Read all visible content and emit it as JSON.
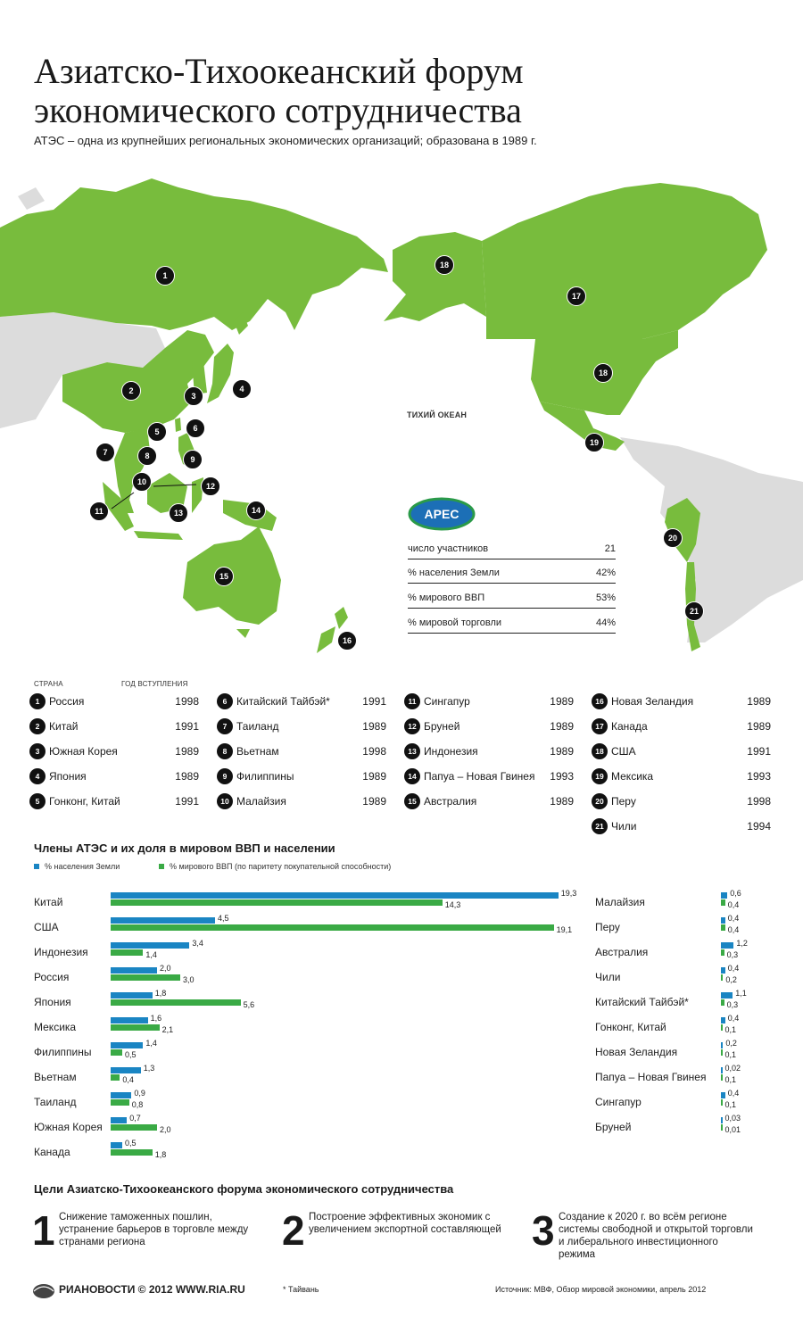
{
  "header": {
    "title": "Азиатско-Тихоокеанский форум экономического сотрудничества",
    "subtitle": "АТЭС – одна из крупнейших региональных экономических организаций; образована в 1989 г."
  },
  "map": {
    "ocean_label": "ТИХИЙ ОКЕАН",
    "member_color": "#78bc3d",
    "other_color": "#dcdcdc"
  },
  "stats": {
    "logo_text": "APEC",
    "rows": [
      {
        "label": "число участников",
        "value": "21"
      },
      {
        "label": "% населения Земли",
        "value": "42%"
      },
      {
        "label": "% мирового ВВП",
        "value": "53%"
      },
      {
        "label": "% мировой торговли",
        "value": "44%"
      }
    ]
  },
  "members_table": {
    "col_country": "СТРАНА",
    "col_year": "ГОД ВСТУПЛЕНИЯ",
    "rows": [
      {
        "num": "1",
        "name": "Россия",
        "year": "1998"
      },
      {
        "num": "2",
        "name": "Китай",
        "year": "1991"
      },
      {
        "num": "3",
        "name": "Южная Корея",
        "year": "1989"
      },
      {
        "num": "4",
        "name": "Япония",
        "year": "1989"
      },
      {
        "num": "5",
        "name": "Гонконг, Китай",
        "year": "1991"
      },
      {
        "num": "6",
        "name": "Китайский Тайбэй*",
        "year": "1991"
      },
      {
        "num": "7",
        "name": "Таиланд",
        "year": "1989"
      },
      {
        "num": "8",
        "name": "Вьетнам",
        "year": "1998"
      },
      {
        "num": "9",
        "name": "Филиппины",
        "year": "1989"
      },
      {
        "num": "10",
        "name": "Малайзия",
        "year": "1989"
      },
      {
        "num": "11",
        "name": "Сингапур",
        "year": "1989"
      },
      {
        "num": "12",
        "name": "Бруней",
        "year": "1989"
      },
      {
        "num": "13",
        "name": "Индонезия",
        "year": "1989"
      },
      {
        "num": "14",
        "name": "Папуа – Новая Гвинея",
        "year": "1993"
      },
      {
        "num": "15",
        "name": "Австралия",
        "year": "1989"
      },
      {
        "num": "16",
        "name": "Новая Зеландия",
        "year": "1989"
      },
      {
        "num": "17",
        "name": "Канада",
        "year": "1989"
      },
      {
        "num": "18",
        "name": "США",
        "year": "1991"
      },
      {
        "num": "19",
        "name": "Мексика",
        "year": "1993"
      },
      {
        "num": "20",
        "name": "Перу",
        "year": "1998"
      },
      {
        "num": "21",
        "name": "Чили",
        "year": "1994"
      }
    ]
  },
  "chart_data": {
    "type": "bar",
    "title": "Члены АТЭС и их доля в мировом ВВП и населении",
    "series": [
      {
        "name": "% населения Земли",
        "color": "#1a85c3",
        "values": [
          19.3,
          4.5,
          3.4,
          2.0,
          1.8,
          1.6,
          1.4,
          1.3,
          0.9,
          0.7,
          0.5,
          0.6,
          0.4,
          1.2,
          0.4,
          1.1,
          0.4,
          0.2,
          0.02,
          0.4,
          0.03
        ],
        "labels": [
          "19,3",
          "4,5",
          "3,4",
          "2,0",
          "1,8",
          "1,6",
          "1,4",
          "1,3",
          "0,9",
          "0,7",
          "0,5",
          "0,6",
          "0,4",
          "1,2",
          "0,4",
          "1,1",
          "0,4",
          "0,2",
          "0,02",
          "0,4",
          "0,03"
        ]
      },
      {
        "name": "% мирового ВВП (по паритету покупательной способности)",
        "color": "#3aaa45",
        "values": [
          14.3,
          19.1,
          1.4,
          3.0,
          5.6,
          2.1,
          0.5,
          0.4,
          0.8,
          2.0,
          1.8,
          0.4,
          0.4,
          0.3,
          0.2,
          0.3,
          0.1,
          0.1,
          0.1,
          0.1,
          0.01
        ],
        "labels": [
          "14,3",
          "19,1",
          "1,4",
          "3,0",
          "5,6",
          "2,1",
          "0,5",
          "0,4",
          "0,8",
          "2,0",
          "1,8",
          "0,4",
          "0,4",
          "0,3",
          "0,2",
          "0,3",
          "0,1",
          "0,1",
          "0,1",
          "0,1",
          "0,01"
        ]
      }
    ],
    "categories": [
      "Китай",
      "США",
      "Индонезия",
      "Россия",
      "Япония",
      "Мексика",
      "Филиппины",
      "Вьетнам",
      "Таиланд",
      "Южная Корея",
      "Канада",
      "Малайзия",
      "Перу",
      "Австралия",
      "Чили",
      "Китайский Тайбэй*",
      "Гонконг, Китай",
      "Новая Зеландия",
      "Папуа – Новая Гвинея",
      "Сингапур",
      "Бруней"
    ],
    "legend": "top-left",
    "grid": false
  },
  "goals": {
    "title": "Цели Азиатско-Тихоокеанского форума экономического сотрудничества",
    "items": [
      {
        "num": "1",
        "text": "Снижение таможенных пошлин, устранение барьеров в торговле между странами региона"
      },
      {
        "num": "2",
        "text": "Построение эффективных экономик с увеличением экспортной составляющей"
      },
      {
        "num": "3",
        "text": "Создание к 2020 г. во всём регионе системы свободной и открытой торговли и либерального инвестиционного режима"
      }
    ]
  },
  "footer": {
    "logo_text": "РИАНОВОСТИ © 2012 WWW.RIA.RU",
    "footnote": "* Тайвань",
    "source": "Источник: МВФ, Обзор мировой экономики, апрель 2012"
  }
}
